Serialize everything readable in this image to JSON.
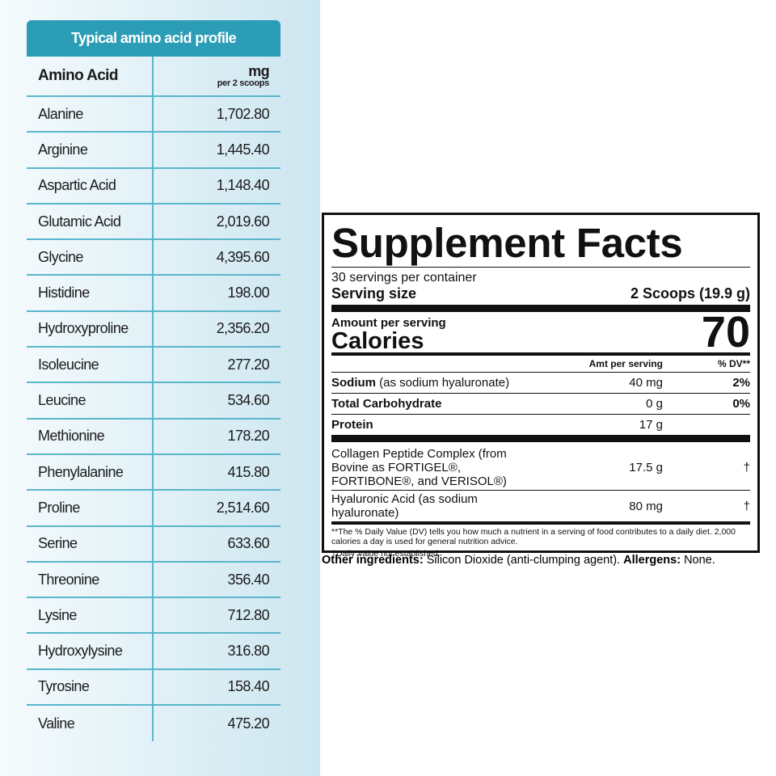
{
  "amino_table": {
    "title": "Typical amino acid profile",
    "col_name": "Amino Acid",
    "col_unit": "mg",
    "col_note": "per 2 scoops",
    "rows": [
      [
        "Alanine",
        "1,702.80"
      ],
      [
        "Arginine",
        "1,445.40"
      ],
      [
        "Aspartic Acid",
        "1,148.40"
      ],
      [
        "Glutamic Acid",
        "2,019.60"
      ],
      [
        "Glycine",
        "4,395.60"
      ],
      [
        "Histidine",
        "198.00"
      ],
      [
        "Hydroxyproline",
        "2,356.20"
      ],
      [
        "Isoleucine",
        "277.20"
      ],
      [
        "Leucine",
        "534.60"
      ],
      [
        "Methionine",
        "178.20"
      ],
      [
        "Phenylalanine",
        "415.80"
      ],
      [
        "Proline",
        "2,514.60"
      ],
      [
        "Serine",
        "633.60"
      ],
      [
        "Threonine",
        "356.40"
      ],
      [
        "Lysine",
        "712.80"
      ],
      [
        "Hydroxylysine",
        "316.80"
      ],
      [
        "Tyrosine",
        "158.40"
      ],
      [
        "Valine",
        "475.20"
      ]
    ]
  },
  "facts": {
    "title": "Supplement Facts",
    "servings": "30 servings per container",
    "serving_size_label": "Serving size",
    "serving_size_value": "2 Scoops (19.9 g)",
    "amount_label": "Amount per serving",
    "calories_label": "Calories",
    "calories_value": "70",
    "col_amount": "Amt per serving",
    "col_dv": "% DV**",
    "nutrients": [
      {
        "name": "Sodium",
        "detail": "(as sodium hyaluronate)",
        "amount": "40 mg",
        "dv": "2%"
      },
      {
        "name": "Total Carbohydrate",
        "amount": "0 g",
        "dv": "0%"
      },
      {
        "name": "Protein",
        "amount": "17 g"
      }
    ],
    "others": [
      {
        "name": "Collagen Peptide Complex (from Bovine as FORTIGEL®, FORTIBONE®, and VERISOL®)",
        "amount": "17.5 g",
        "dv": "†"
      },
      {
        "name": "Hyaluronic Acid (as sodium hyaluronate)",
        "amount": "80 mg",
        "dv": "†"
      }
    ],
    "footnotes": [
      "**The % Daily Value (DV) tells you how much a nutrient in a serving of food contributes to a daily diet. 2,000 calories a day is used for general nutrition advice.",
      "†Daily Value not established."
    ]
  },
  "other_ingredients": {
    "label": "Other ingredients:",
    "text": "Silicon Dioxide (anti-clumping agent).",
    "allergens_label": "Allergens:",
    "allergens_text": "None."
  }
}
